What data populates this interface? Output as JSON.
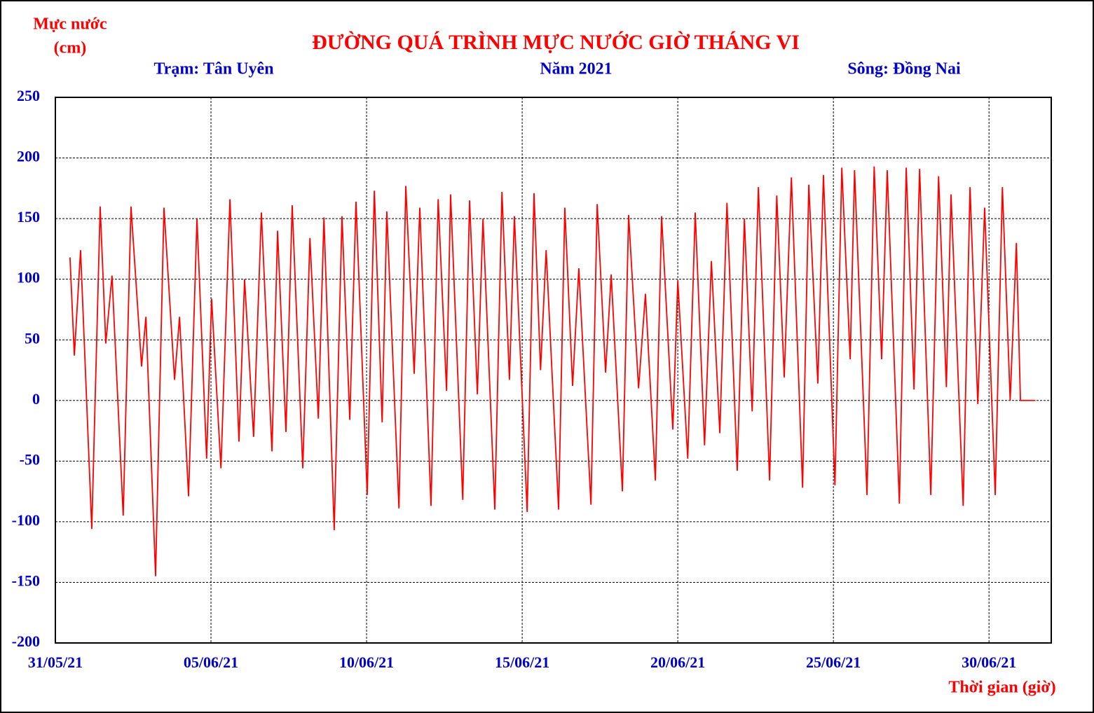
{
  "chart_data": {
    "type": "line",
    "title": "ĐƯỜNG QUÁ TRÌNH MỰC NƯỚC GIỜ THÁNG VI",
    "station": "Trạm: Tân Uyên",
    "year": "Năm 2021",
    "river": "Sông: Đồng Nai",
    "y_label": [
      "Mực nước",
      "(cm)"
    ],
    "x_label": "Thời gian (giờ)",
    "grid": true,
    "xlim": [
      0,
      32
    ],
    "xticks": [
      {
        "value": 0,
        "label": "31/05/21"
      },
      {
        "value": 5,
        "label": "05/06/21"
      },
      {
        "value": 10,
        "label": "10/06/21"
      },
      {
        "value": 15,
        "label": "15/06/21"
      },
      {
        "value": 20,
        "label": "20/06/21"
      },
      {
        "value": 25,
        "label": "25/06/21"
      },
      {
        "value": 30,
        "label": "30/06/21"
      }
    ],
    "ylim": [
      -200,
      250
    ],
    "yticks": [
      250,
      200,
      150,
      100,
      50,
      0,
      -50,
      -100,
      -150,
      -200
    ],
    "x": [
      0.47,
      0.61,
      0.81,
      1.17,
      1.44,
      1.62,
      1.82,
      2.18,
      2.43,
      2.77,
      2.91,
      3.22,
      3.49,
      3.83,
      3.99,
      4.28,
      4.55,
      4.86,
      5.02,
      5.32,
      5.61,
      5.9,
      6.08,
      6.37,
      6.62,
      6.96,
      7.14,
      7.41,
      7.61,
      7.95,
      8.18,
      8.45,
      8.63,
      8.96,
      9.21,
      9.46,
      9.66,
      10.02,
      10.25,
      10.5,
      10.65,
      11.04,
      11.26,
      11.53,
      11.71,
      12.07,
      12.3,
      12.57,
      12.7,
      13.09,
      13.31,
      13.56,
      13.74,
      14.12,
      14.35,
      14.59,
      14.75,
      15.16,
      15.38,
      15.59,
      15.77,
      16.17,
      16.37,
      16.62,
      16.82,
      17.21,
      17.41,
      17.68,
      17.86,
      18.22,
      18.42,
      18.74,
      18.96,
      19.28,
      19.48,
      19.84,
      20.0,
      20.32,
      20.56,
      20.86,
      21.08,
      21.35,
      21.58,
      21.91,
      22.14,
      22.39,
      22.59,
      22.95,
      23.18,
      23.42,
      23.65,
      24.01,
      24.21,
      24.5,
      24.68,
      25.05,
      25.27,
      25.54,
      25.68,
      26.08,
      26.31,
      26.55,
      26.73,
      27.12,
      27.34,
      27.59,
      27.77,
      28.13,
      28.38,
      28.63,
      28.78,
      29.17,
      29.39,
      29.64,
      29.86,
      30.2,
      30.43,
      30.68,
      30.88,
      31.01,
      31.49
    ],
    "series": [
      {
        "name": "Mực nước",
        "color": "#ff0000",
        "values": [
          118,
          37,
          124,
          -106,
          160,
          47,
          103,
          -95,
          160,
          28,
          69,
          -145,
          159,
          17,
          69,
          -79,
          150,
          -48,
          84,
          -56,
          166,
          -34,
          100,
          -30,
          155,
          -42,
          140,
          -26,
          161,
          -56,
          134,
          -15,
          151,
          -107,
          152,
          -16,
          164,
          -78,
          173,
          -18,
          156,
          -89,
          177,
          22,
          159,
          -87,
          166,
          8,
          170,
          -82,
          165,
          5,
          150,
          -90,
          172,
          17,
          152,
          -92,
          171,
          25,
          124,
          -90,
          159,
          12,
          109,
          -86,
          162,
          23,
          104,
          -75,
          153,
          10,
          88,
          -66,
          152,
          -24,
          99,
          -48,
          155,
          -37,
          115,
          -27,
          163,
          -58,
          150,
          -9,
          176,
          -66,
          169,
          19,
          184,
          -72,
          178,
          14,
          186,
          -70,
          192,
          34,
          190,
          -78,
          193,
          34,
          190,
          -85,
          192,
          9,
          191,
          -78,
          185,
          11,
          170,
          -87,
          176,
          -3,
          159,
          -78,
          176,
          0,
          130,
          0,
          0
        ]
      }
    ]
  }
}
